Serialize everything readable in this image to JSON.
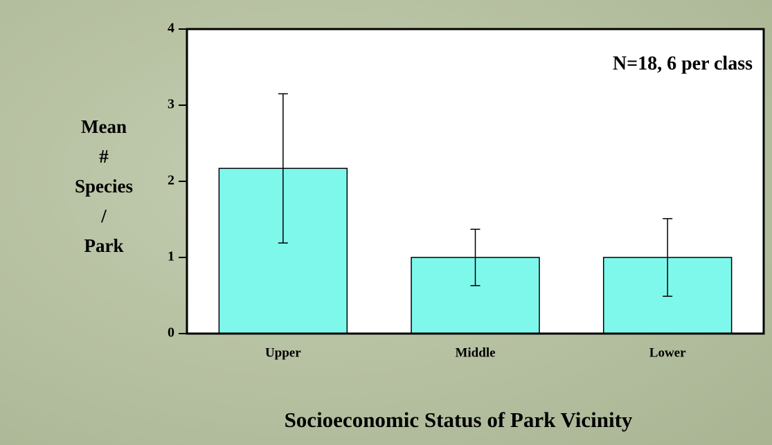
{
  "chart_data": {
    "type": "bar",
    "ylabel": [
      "Mean",
      "#",
      "Species",
      "/",
      "Park"
    ],
    "xlabel": "Socioeconomic Status of Park Vicinity",
    "annotation": "N=18, 6 per class",
    "categories": [
      "Upper",
      "Middle",
      "Lower"
    ],
    "values": [
      2.17,
      1.0,
      1.0
    ],
    "errors": [
      0.98,
      0.37,
      0.51
    ],
    "color": "#7ff8ec",
    "ylim": [
      0,
      4
    ],
    "yticks": [
      0,
      1,
      2,
      3,
      4
    ],
    "grid": false
  }
}
